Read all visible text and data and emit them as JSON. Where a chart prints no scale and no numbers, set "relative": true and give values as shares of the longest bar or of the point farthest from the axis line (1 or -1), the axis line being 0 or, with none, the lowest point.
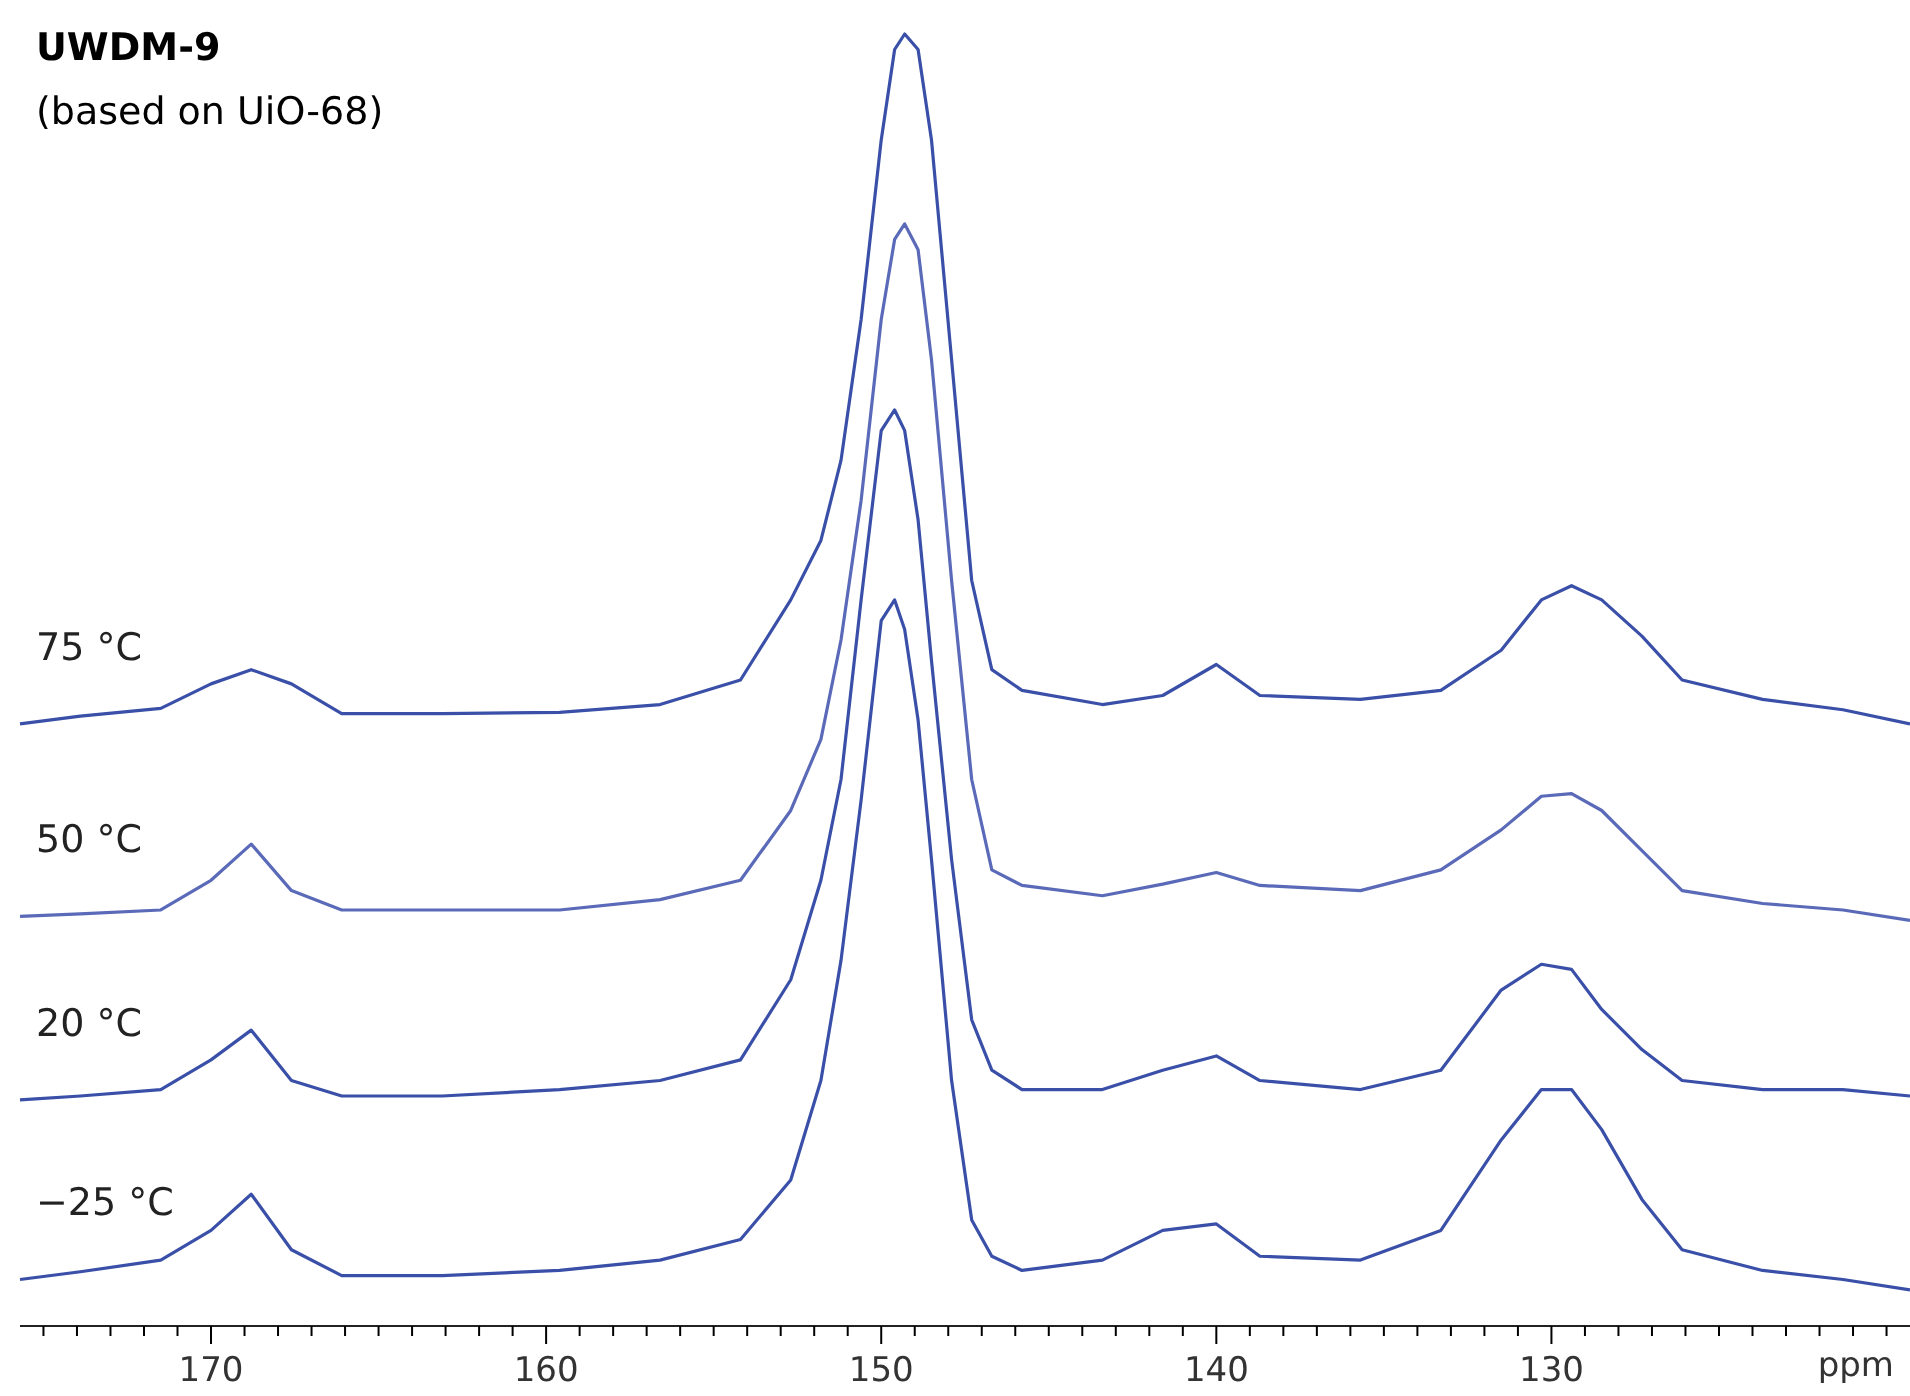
{
  "chart_data": {
    "type": "line",
    "title": "UWDM-9",
    "subtitle": "(based on UiO-68)",
    "xlabel": "ppm",
    "relative": true,
    "tick_labels": "x",
    "grid": false,
    "legend": false,
    "marker": "none",
    "line_style": "solid",
    "x": [
      175.7,
      173.9,
      171.5,
      170,
      168.8,
      167.6,
      166.1,
      163.1,
      159.6,
      156.6,
      154.2,
      152.7,
      151.8,
      151.2,
      150.6,
      150,
      149.6,
      149.3,
      148.9,
      148.5,
      147.9,
      147.3,
      146.7,
      145.8,
      143.4,
      141.6,
      140,
      138.7,
      135.7,
      133.3,
      131.5,
      130.3,
      129.4,
      128.5,
      127.3,
      126.1,
      123.7,
      121.3,
      119.3
    ],
    "xlim": [
      175.7,
      119.3
    ],
    "xticks": [
      {
        "value": 175,
        "label": null
      },
      {
        "value": 174,
        "label": null
      },
      {
        "value": 173,
        "label": null
      },
      {
        "value": 172,
        "label": null
      },
      {
        "value": 171,
        "label": null
      },
      170,
      {
        "value": 169,
        "label": null
      },
      {
        "value": 168,
        "label": null
      },
      {
        "value": 167,
        "label": null
      },
      {
        "value": 166,
        "label": null
      },
      {
        "value": 165,
        "label": null
      },
      {
        "value": 164,
        "label": null
      },
      {
        "value": 163,
        "label": null
      },
      {
        "value": 162,
        "label": null
      },
      {
        "value": 161,
        "label": null
      },
      160,
      {
        "value": 159,
        "label": null
      },
      {
        "value": 158,
        "label": null
      },
      {
        "value": 157,
        "label": null
      },
      {
        "value": 156,
        "label": null
      },
      {
        "value": 155,
        "label": null
      },
      {
        "value": 154,
        "label": null
      },
      {
        "value": 153,
        "label": null
      },
      {
        "value": 152,
        "label": null
      },
      {
        "value": 151,
        "label": null
      },
      150,
      {
        "value": 149,
        "label": null
      },
      {
        "value": 148,
        "label": null
      },
      {
        "value": 147,
        "label": null
      },
      {
        "value": 146,
        "label": null
      },
      {
        "value": 145,
        "label": null
      },
      {
        "value": 144,
        "label": null
      },
      {
        "value": 143,
        "label": null
      },
      {
        "value": 142,
        "label": null
      },
      {
        "value": 141,
        "label": null
      },
      140,
      {
        "value": 139,
        "label": null
      },
      {
        "value": 138,
        "label": null
      },
      {
        "value": 137,
        "label": null
      },
      {
        "value": 136,
        "label": null
      },
      {
        "value": 135,
        "label": null
      },
      {
        "value": 134,
        "label": null
      },
      {
        "value": 133,
        "label": null
      },
      {
        "value": 132,
        "label": null
      },
      {
        "value": 131,
        "label": null
      },
      130,
      {
        "value": 129,
        "label": null
      },
      {
        "value": 128,
        "label": null
      },
      {
        "value": 127,
        "label": null
      },
      {
        "value": 126,
        "label": null
      },
      {
        "value": 125,
        "label": null
      },
      {
        "value": 124,
        "label": null
      },
      {
        "value": 123,
        "label": null
      },
      {
        "value": 122,
        "label": null
      },
      {
        "value": 121,
        "label": null
      },
      {
        "value": 120,
        "label": null
      }
    ],
    "series": [
      {
        "name": "75 °C",
        "color": "#3a4fa8",
        "values": [
          0.466,
          0.472,
          0.478,
          0.497,
          0.508,
          0.497,
          0.474,
          0.474,
          0.475,
          0.481,
          0.5,
          0.562,
          0.608,
          0.67,
          0.779,
          0.918,
          0.988,
          1,
          0.988,
          0.918,
          0.748,
          0.577,
          0.508,
          0.492,
          0.481,
          0.488,
          0.512,
          0.488,
          0.485,
          0.492,
          0.523,
          0.562,
          0.573,
          0.562,
          0.534,
          0.5,
          0.485,
          0.477,
          0.466
        ]
      },
      {
        "name": "50 °C",
        "color": "#5a6ab8",
        "values": [
          0.317,
          0.319,
          0.322,
          0.345,
          0.373,
          0.337,
          0.322,
          0.322,
          0.322,
          0.33,
          0.345,
          0.399,
          0.454,
          0.531,
          0.639,
          0.779,
          0.841,
          0.853,
          0.833,
          0.748,
          0.577,
          0.423,
          0.353,
          0.341,
          0.333,
          0.342,
          0.351,
          0.341,
          0.337,
          0.353,
          0.384,
          0.41,
          0.412,
          0.399,
          0.368,
          0.337,
          0.327,
          0.322,
          0.314
        ]
      },
      {
        "name": "20 °C",
        "color": "#3a4fa8",
        "values": [
          0.175,
          0.178,
          0.183,
          0.206,
          0.229,
          0.19,
          0.178,
          0.178,
          0.183,
          0.19,
          0.206,
          0.268,
          0.345,
          0.423,
          0.562,
          0.693,
          0.709,
          0.693,
          0.624,
          0.515,
          0.361,
          0.237,
          0.198,
          0.183,
          0.183,
          0.198,
          0.209,
          0.19,
          0.183,
          0.198,
          0.26,
          0.28,
          0.276,
          0.245,
          0.214,
          0.19,
          0.183,
          0.183,
          0.178
        ]
      },
      {
        "name": "−25 °C",
        "color": "#3a4fa8",
        "values": [
          0.036,
          0.042,
          0.051,
          0.074,
          0.102,
          0.059,
          0.039,
          0.039,
          0.043,
          0.051,
          0.067,
          0.113,
          0.19,
          0.283,
          0.407,
          0.546,
          0.562,
          0.539,
          0.469,
          0.361,
          0.19,
          0.082,
          0.054,
          0.043,
          0.051,
          0.074,
          0.079,
          0.054,
          0.051,
          0.074,
          0.144,
          0.183,
          0.183,
          0.152,
          0.098,
          0.059,
          0.043,
          0.036,
          0.028
        ]
      }
    ]
  }
}
